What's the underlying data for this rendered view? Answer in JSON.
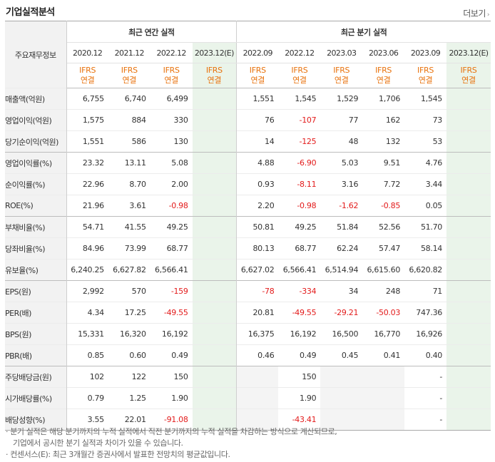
{
  "title": "기업실적분석",
  "more_label": "더보기",
  "table": {
    "corner_label": "주요재무정보",
    "annual_group_label": "최근 연간 실적",
    "quarter_group_label": "최근 분기 실적",
    "annual_periods": [
      "2020.12",
      "2021.12",
      "2022.12",
      "2023.12(E)"
    ],
    "quarter_periods": [
      "2022.09",
      "2022.12",
      "2023.03",
      "2023.06",
      "2023.09",
      "2023.12(E)"
    ],
    "ifrs_line1": "IFRS",
    "ifrs_line2": "연결",
    "rows": [
      {
        "label": "매출액(억원)",
        "annual": [
          "6,755",
          "6,740",
          "6,499",
          ""
        ],
        "quarter": [
          "1,551",
          "1,545",
          "1,529",
          "1,706",
          "1,545",
          ""
        ]
      },
      {
        "label": "영업이익(억원)",
        "annual": [
          "1,575",
          "884",
          "330",
          ""
        ],
        "quarter": [
          "76",
          "-107",
          "77",
          "162",
          "73",
          ""
        ]
      },
      {
        "label": "당기순이익(억원)",
        "annual": [
          "1,551",
          "586",
          "130",
          ""
        ],
        "quarter": [
          "14",
          "-125",
          "48",
          "132",
          "53",
          ""
        ]
      },
      {
        "label": "영업이익률(%)",
        "annual": [
          "23.32",
          "13.11",
          "5.08",
          ""
        ],
        "quarter": [
          "4.88",
          "-6.90",
          "5.03",
          "9.51",
          "4.76",
          ""
        ]
      },
      {
        "label": "순이익률(%)",
        "annual": [
          "22.96",
          "8.70",
          "2.00",
          ""
        ],
        "quarter": [
          "0.93",
          "-8.11",
          "3.16",
          "7.72",
          "3.44",
          ""
        ]
      },
      {
        "label": "ROE(%)",
        "annual": [
          "21.96",
          "3.61",
          "-0.98",
          ""
        ],
        "quarter": [
          "2.20",
          "-0.98",
          "-1.62",
          "-0.85",
          "0.05",
          ""
        ]
      },
      {
        "label": "부채비율(%)",
        "annual": [
          "54.71",
          "41.55",
          "49.25",
          ""
        ],
        "quarter": [
          "50.81",
          "49.25",
          "51.84",
          "52.56",
          "51.70",
          ""
        ]
      },
      {
        "label": "당좌비율(%)",
        "annual": [
          "84.96",
          "73.99",
          "68.77",
          ""
        ],
        "quarter": [
          "80.13",
          "68.77",
          "62.24",
          "57.47",
          "58.14",
          ""
        ]
      },
      {
        "label": "유보율(%)",
        "annual": [
          "6,240.25",
          "6,627.82",
          "6,566.41",
          ""
        ],
        "quarter": [
          "6,627.02",
          "6,566.41",
          "6,514.94",
          "6,615.60",
          "6,620.82",
          ""
        ]
      },
      {
        "label": "EPS(원)",
        "annual": [
          "2,992",
          "570",
          "-159",
          ""
        ],
        "quarter": [
          "-78",
          "-334",
          "34",
          "248",
          "71",
          ""
        ]
      },
      {
        "label": "PER(배)",
        "annual": [
          "4.34",
          "17.25",
          "-49.55",
          ""
        ],
        "quarter": [
          "20.81",
          "-49.55",
          "-29.21",
          "-50.03",
          "747.36",
          ""
        ]
      },
      {
        "label": "BPS(원)",
        "annual": [
          "15,331",
          "16,320",
          "16,192",
          ""
        ],
        "quarter": [
          "16,375",
          "16,192",
          "16,500",
          "16,770",
          "16,926",
          ""
        ]
      },
      {
        "label": "PBR(배)",
        "annual": [
          "0.85",
          "0.60",
          "0.49",
          ""
        ],
        "quarter": [
          "0.46",
          "0.49",
          "0.45",
          "0.41",
          "0.40",
          ""
        ]
      },
      {
        "label": "주당배당금(원)",
        "annual": [
          "102",
          "122",
          "150",
          ""
        ],
        "quarter": [
          "",
          "150",
          "",
          "",
          "-",
          ""
        ]
      },
      {
        "label": "시가배당률(%)",
        "annual": [
          "0.79",
          "1.25",
          "1.90",
          ""
        ],
        "quarter": [
          "",
          "1.90",
          "",
          "",
          "-",
          ""
        ]
      },
      {
        "label": "배당성향(%)",
        "annual": [
          "3.55",
          "22.01",
          "-91.08",
          ""
        ],
        "quarter": [
          "",
          "-43.41",
          "",
          "",
          "-",
          ""
        ]
      }
    ]
  },
  "notes": {
    "line1": "· 분기 실적은 해당 분기까지의 누적 실적에서 직전 분기까지의 누적 실적을 차감하는 방식으로 계산되므로,",
    "line2": "기업에서 공시한 분기 실적과 차이가 있을 수 있습니다.",
    "line3": "· 컨센서스(E): 최근 3개월간 증권사에서 발표한 전망치의 평균값입니다."
  },
  "colors": {
    "negative": "#e31b1b",
    "ifrs": "#e8720c",
    "estimate_bg": "#eaf4ea"
  }
}
